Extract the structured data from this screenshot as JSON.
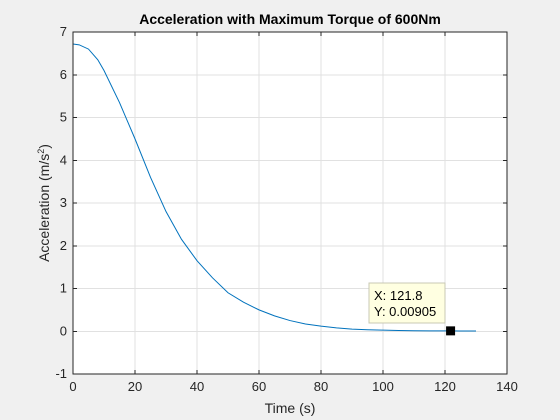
{
  "chart_data": {
    "type": "line",
    "title": "Acceleration with Maximum Torque of 600Nm",
    "xlabel": "Time (s)",
    "ylabel_main": "Acceleration (m/s",
    "ylabel_sup": "2",
    "ylabel_close": ")",
    "xlim": [
      0,
      140
    ],
    "ylim": [
      -1,
      7
    ],
    "xticks": [
      0,
      20,
      40,
      60,
      80,
      100,
      120,
      140
    ],
    "yticks": [
      -1,
      0,
      1,
      2,
      3,
      4,
      5,
      6,
      7
    ],
    "grid": true,
    "line_color": "#0072bd",
    "series": [
      {
        "x": [
          0,
          2,
          5,
          8,
          10,
          15,
          20,
          25,
          30,
          35,
          40,
          45,
          50,
          55,
          60,
          65,
          70,
          75,
          80,
          85,
          90,
          95,
          100,
          105,
          110,
          115,
          120,
          121.8,
          125,
          130
        ],
        "values": [
          6.72,
          6.7,
          6.6,
          6.35,
          6.1,
          5.35,
          4.5,
          3.6,
          2.8,
          2.15,
          1.65,
          1.25,
          0.9,
          0.68,
          0.5,
          0.36,
          0.25,
          0.17,
          0.12,
          0.08,
          0.05,
          0.035,
          0.025,
          0.018,
          0.013,
          0.01,
          0.009,
          0.00905,
          0.007,
          0.005
        ]
      }
    ],
    "datatip": {
      "x": 121.8,
      "y": 0.00905,
      "x_text": "X: 121.8",
      "y_text": "Y: 0.00905"
    }
  }
}
